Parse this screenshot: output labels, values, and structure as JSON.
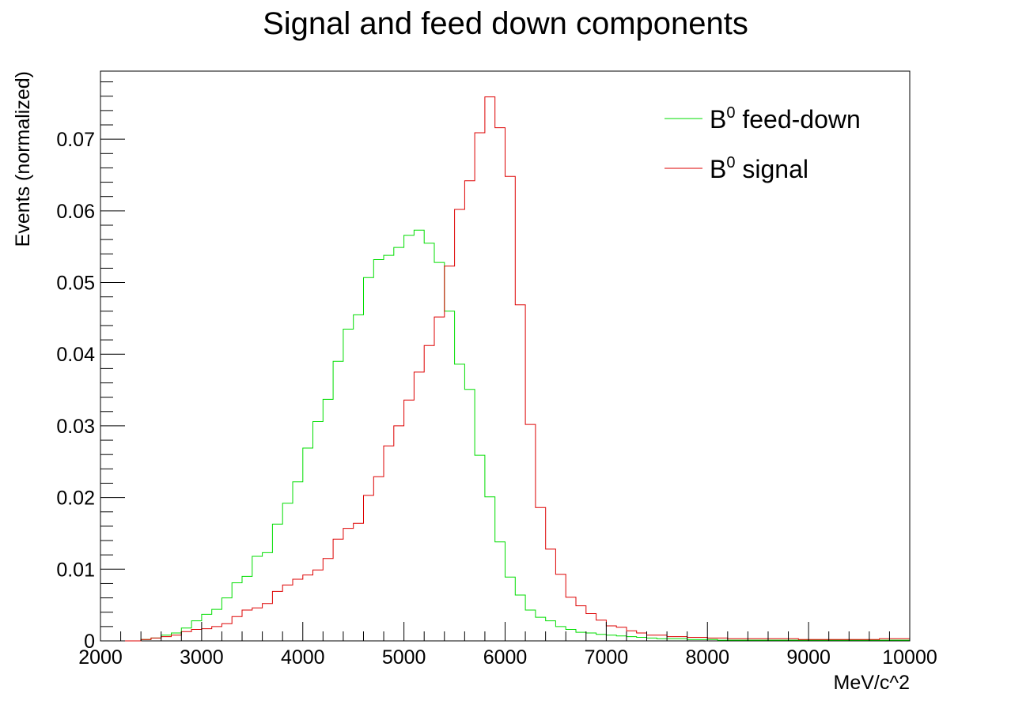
{
  "chart_data": {
    "type": "line",
    "title": "Signal and feed down components",
    "xlabel": "MeV/c^2",
    "ylabel": "Events (normalized)",
    "xlim": [
      2000,
      10000
    ],
    "ylim": [
      0,
      0.0795
    ],
    "bin_width": 100,
    "grid": false,
    "legend_position": "top-right",
    "xticks": [
      "2000",
      "3000",
      "4000",
      "5000",
      "6000",
      "7000",
      "8000",
      "9000",
      "10000"
    ],
    "yticks": [
      "0",
      "0.01",
      "0.02",
      "0.03",
      "0.04",
      "0.05",
      "0.06",
      "0.07"
    ],
    "series": [
      {
        "name": "B0 feed-down",
        "legend_base": "B",
        "legend_sup": "0",
        "legend_rest": " feed-down",
        "color": "#00dd00",
        "values": [
          0,
          0,
          0,
          0,
          0.0002,
          0.0004,
          0.0008,
          0.0011,
          0.0018,
          0.0028,
          0.0037,
          0.0044,
          0.006,
          0.0081,
          0.009,
          0.0118,
          0.0123,
          0.0163,
          0.0192,
          0.0222,
          0.0269,
          0.0306,
          0.0337,
          0.039,
          0.0435,
          0.0455,
          0.0507,
          0.0532,
          0.0538,
          0.0549,
          0.0566,
          0.0573,
          0.0555,
          0.0528,
          0.046,
          0.0386,
          0.0351,
          0.0259,
          0.0201,
          0.0138,
          0.0089,
          0.0064,
          0.0043,
          0.0033,
          0.0028,
          0.002,
          0.0016,
          0.0012,
          0.0011,
          0.0009,
          0.0008,
          0.0007,
          0.0006,
          0.0005,
          0.0004,
          0.0003,
          0.0003,
          0.0003,
          0.0002,
          0.0002,
          0.0002,
          0.0001,
          0.0001,
          0.0001,
          0.0001,
          0.0001,
          0.0001,
          0.0001,
          0.0001,
          0.0001,
          0.0001,
          0.0001,
          0.0001,
          0.0001,
          0.0001,
          0.0001,
          0.0001,
          0.0001,
          0.0001,
          0.0001
        ]
      },
      {
        "name": "B0 signal",
        "legend_base": "B",
        "legend_sup": "0",
        "legend_rest": " signal",
        "color": "#dd0000",
        "values": [
          0,
          0,
          0,
          0,
          0.0002,
          0.0004,
          0.0006,
          0.0008,
          0.0013,
          0.0016,
          0.0017,
          0.002,
          0.0024,
          0.0034,
          0.0043,
          0.0046,
          0.0052,
          0.0069,
          0.0078,
          0.0086,
          0.0092,
          0.0099,
          0.0115,
          0.0142,
          0.0157,
          0.0164,
          0.0203,
          0.0229,
          0.0272,
          0.03,
          0.0336,
          0.0375,
          0.0412,
          0.0452,
          0.0523,
          0.0602,
          0.0642,
          0.0709,
          0.0759,
          0.0716,
          0.0648,
          0.0469,
          0.0302,
          0.0186,
          0.0128,
          0.0093,
          0.0061,
          0.0049,
          0.0038,
          0.0029,
          0.0021,
          0.0019,
          0.0014,
          0.0011,
          0.0008,
          0.0008,
          0.0006,
          0.0006,
          0.0005,
          0.0005,
          0.0004,
          0.0004,
          0.0003,
          0.0003,
          0.0003,
          0.0003,
          0.0003,
          0.0003,
          0.0003,
          0.0002,
          0.0002,
          0.0002,
          0.0002,
          0.0002,
          0.0002,
          0.0002,
          0.0002,
          0.0003,
          0.0003,
          0.0003
        ]
      }
    ]
  }
}
